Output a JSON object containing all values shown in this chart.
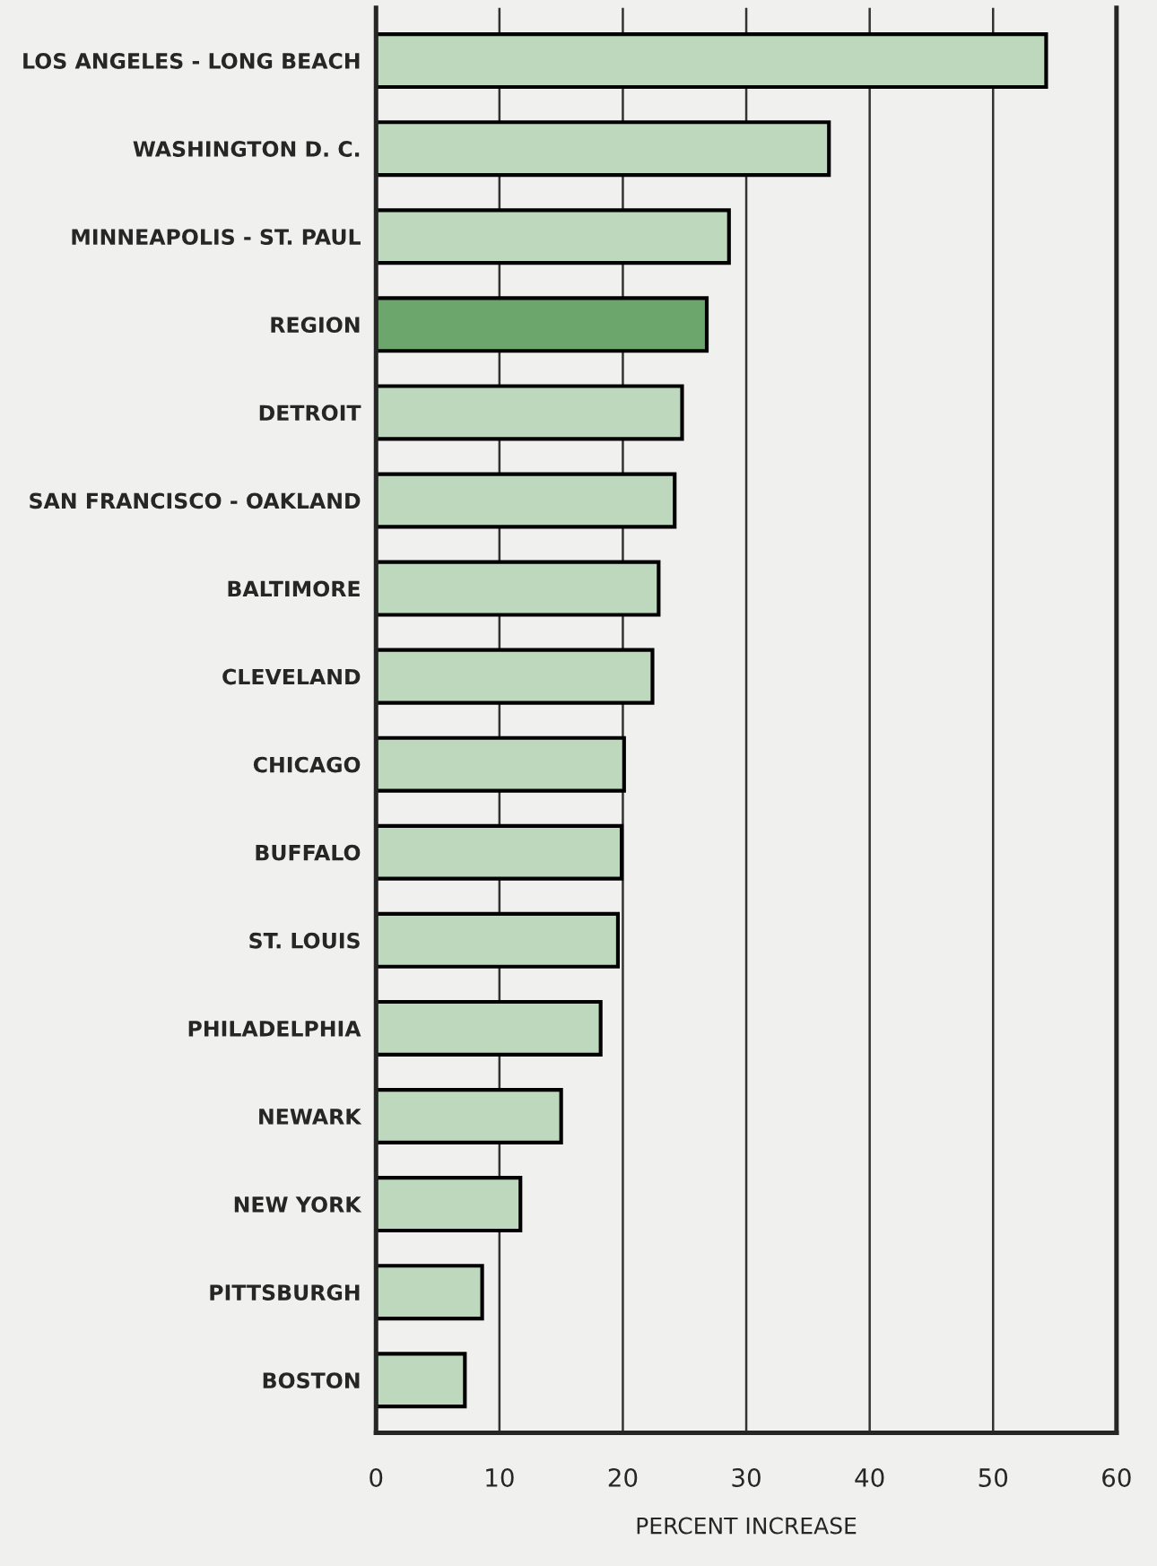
{
  "chart_data": {
    "type": "bar",
    "orientation": "horizontal",
    "xlabel": "PERCENT INCREASE",
    "categories": [
      "LOS ANGELES - LONG BEACH",
      "WASHINGTON D. C.",
      "MINNEAPOLIS - ST. PAUL",
      "REGION",
      "DETROIT",
      "SAN FRANCISCO - OAKLAND",
      "BALTIMORE",
      "CLEVELAND",
      "CHICAGO",
      "BUFFALO",
      "ST. LOUIS",
      "PHILADELPHIA",
      "NEWARK",
      "NEW YORK",
      "PITTSBURGH",
      "BOSTON"
    ],
    "values": [
      54.3,
      36.7,
      28.6,
      26.8,
      24.8,
      24.2,
      22.9,
      22.4,
      20.1,
      19.9,
      19.6,
      18.2,
      15.0,
      11.7,
      8.6,
      7.2
    ],
    "colors": [
      "#b8dcb8",
      "#b8dcb8",
      "#b8dcb8",
      "#62b064",
      "#b8dcb8",
      "#b8dcb8",
      "#b8dcb8",
      "#b8dcb8",
      "#b8dcb8",
      "#b8dcb8",
      "#b8dcb8",
      "#b8dcb8",
      "#b8dcb8",
      "#b8dcb8",
      "#b8dcb8",
      "#b8dcb8"
    ],
    "xlim": [
      0,
      60
    ],
    "xticks": [
      0,
      10,
      20,
      30,
      40,
      50,
      60
    ],
    "grid": "x",
    "legend": false
  }
}
